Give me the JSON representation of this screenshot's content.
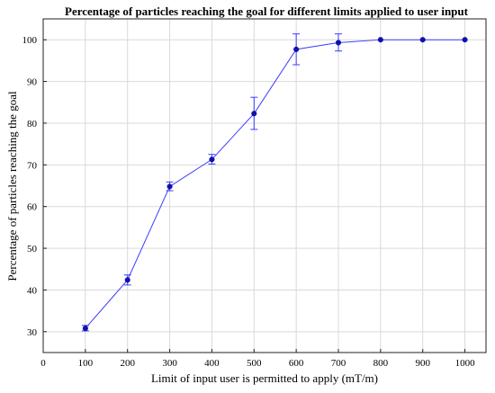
{
  "chart_data": {
    "type": "line",
    "title": "Percentage of particles reaching the goal for different limits applied to user input",
    "xlabel": "Limit of input user is permitted to apply (mT/m)",
    "ylabel": "Percentage of particles reaching the goal",
    "xlim": [
      0,
      1050
    ],
    "ylim": [
      25,
      105
    ],
    "xticks": [
      0,
      100,
      200,
      300,
      400,
      500,
      600,
      700,
      800,
      900,
      1000
    ],
    "yticks": [
      30,
      40,
      50,
      60,
      70,
      80,
      90,
      100
    ],
    "grid": true,
    "series": [
      {
        "x": [
          100,
          200,
          300,
          400,
          500,
          600,
          700,
          800,
          900,
          1000
        ],
        "y": [
          30.8,
          42.4,
          64.8,
          71.3,
          82.3,
          97.7,
          99.3,
          100,
          100,
          100
        ],
        "err_low": [
          30.2,
          41.2,
          63.8,
          70.2,
          78.5,
          94.0,
          97.3,
          100,
          100,
          100
        ],
        "err_high": [
          31.5,
          43.6,
          65.9,
          72.5,
          86.2,
          101.4,
          101.4,
          100,
          100,
          100
        ]
      }
    ],
    "colors": {
      "line": "#3b3bff",
      "marker": "#1010b0"
    }
  }
}
